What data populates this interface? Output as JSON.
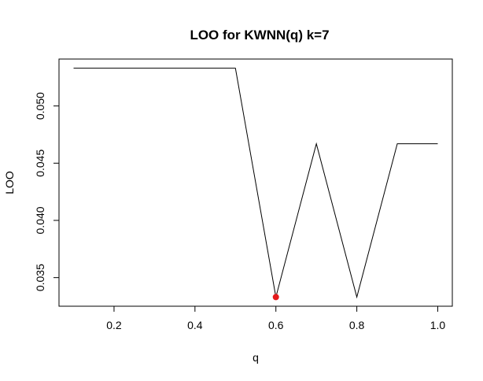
{
  "chart_data": {
    "type": "line",
    "title": "LOO for KWNN(q) k=7",
    "xlabel": "q",
    "ylabel": "LOO",
    "x": [
      0.1,
      0.2,
      0.3,
      0.4,
      0.5,
      0.6,
      0.7,
      0.8,
      0.9,
      1.0
    ],
    "series": [
      {
        "values": [
          0.0533,
          0.0533,
          0.0533,
          0.0533,
          0.0533,
          0.0333,
          0.0467,
          0.0333,
          0.0467,
          0.0467
        ]
      }
    ],
    "highlight_point": {
      "x": 0.6,
      "y": 0.0333,
      "color": "#e41a1c"
    },
    "xlim": [
      0.064,
      1.036
    ],
    "ylim": [
      0.0325,
      0.0541
    ],
    "x_ticks": [
      "0.2",
      "0.4",
      "0.6",
      "0.8",
      "1.0"
    ],
    "y_ticks": [
      "0.035",
      "0.040",
      "0.045",
      "0.050"
    ],
    "x_tick_values": [
      0.2,
      0.4,
      0.6,
      0.8,
      1.0
    ],
    "y_tick_values": [
      0.035,
      0.04,
      0.045,
      0.05
    ],
    "grid": false,
    "line_color": "#000000"
  }
}
